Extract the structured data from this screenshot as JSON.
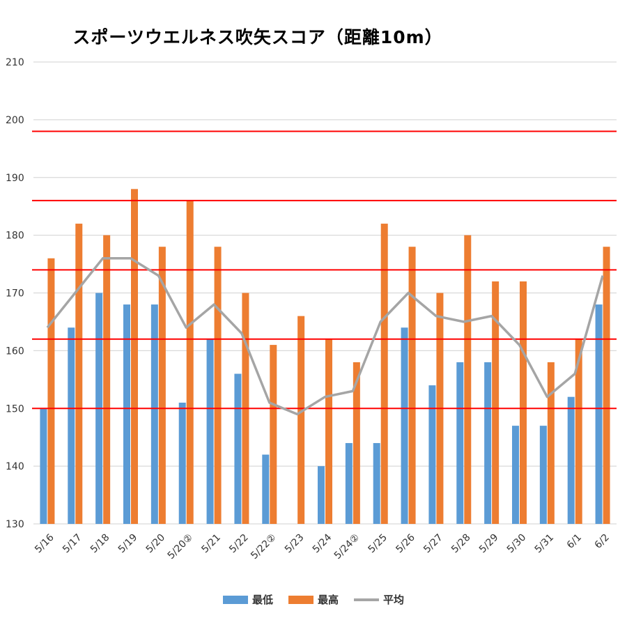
{
  "chart_data": {
    "type": "bar",
    "title": "スポーツウエルネス吹矢スコア（距離10m）",
    "categories": [
      "5/16",
      "5/17",
      "5/18",
      "5/19",
      "5/20",
      "5/20②",
      "5/21",
      "5/22",
      "5/22②",
      "5/23",
      "5/24",
      "5/24②",
      "5/25",
      "5/26",
      "5/27",
      "5/28",
      "5/29",
      "5/30",
      "5/31",
      "6/1",
      "6/2"
    ],
    "series": [
      {
        "name": "最低",
        "type": "bar",
        "color": "#5b9bd5",
        "values": [
          150,
          164,
          170,
          168,
          168,
          151,
          162,
          156,
          142,
          null,
          140,
          144,
          144,
          164,
          154,
          158,
          158,
          147,
          147,
          152,
          168
        ]
      },
      {
        "name": "最高",
        "type": "bar",
        "color": "#ed7d31",
        "values": [
          176,
          182,
          180,
          188,
          178,
          186,
          178,
          170,
          161,
          166,
          162,
          158,
          182,
          178,
          170,
          180,
          172,
          172,
          158,
          162,
          178
        ]
      },
      {
        "name": "平均",
        "type": "line",
        "color": "#a5a5a5",
        "values": [
          164,
          170,
          176,
          176,
          173,
          164,
          168,
          163,
          151,
          149,
          152,
          153,
          165,
          170,
          166,
          165,
          166,
          161,
          152,
          156,
          173
        ]
      }
    ],
    "reference_lines": [
      {
        "value": 150,
        "color": "#ff0000"
      },
      {
        "value": 162,
        "color": "#ff0000"
      },
      {
        "value": 174,
        "color": "#ff0000"
      },
      {
        "value": 186,
        "color": "#ff0000"
      },
      {
        "value": 198,
        "color": "#ff0000"
      }
    ],
    "yticks": [
      130,
      140,
      150,
      160,
      170,
      180,
      190,
      200,
      210
    ],
    "ylim": [
      130,
      210
    ],
    "grid": true,
    "legend_position": "bottom"
  }
}
